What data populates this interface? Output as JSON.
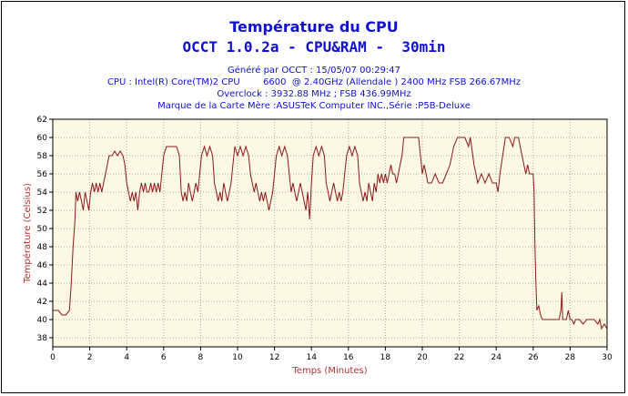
{
  "chart_data": {
    "type": "line",
    "title": "Température du CPU",
    "subtitle": "OCCT 1.0.2a - CPU&RAM -  30min",
    "info_lines": [
      "Généré par OCCT : 15/05/07 00:29:47",
      "CPU : Intel(R) Core(TM)2 CPU        6600  @ 2.40GHz (Allendale ) 2400 MHz FSB 266.67MHz",
      "Overclock : 3932.88 MHz ; FSB 436.99MHz",
      "Marque de la Carte Mère :ASUSTeK Computer INC.,Série :P5B-Deluxe"
    ],
    "xlabel": "Temps (Minutes)",
    "ylabel": "Température (Celsius)",
    "xlim": [
      0,
      30
    ],
    "ylim": [
      37,
      62
    ],
    "xticks": [
      0,
      2,
      4,
      6,
      8,
      10,
      12,
      14,
      16,
      18,
      20,
      22,
      24,
      26,
      28,
      30
    ],
    "yticks": [
      38,
      40,
      42,
      44,
      46,
      48,
      50,
      52,
      54,
      56,
      58,
      60,
      62
    ],
    "grid": true,
    "colors": {
      "line": "#8b1a1a",
      "plot_bg": "#fdf8e4",
      "grid": "#aaaaaa",
      "title": "#1010d0",
      "axis_label": "#b03030"
    },
    "series": [
      {
        "values": [
          [
            0,
            41
          ],
          [
            0.3,
            41
          ],
          [
            0.5,
            40.5
          ],
          [
            0.7,
            40.5
          ],
          [
            0.9,
            41
          ],
          [
            1.0,
            44
          ],
          [
            1.1,
            48
          ],
          [
            1.2,
            51
          ],
          [
            1.25,
            54
          ],
          [
            1.35,
            53
          ],
          [
            1.45,
            54
          ],
          [
            1.55,
            53
          ],
          [
            1.65,
            52
          ],
          [
            1.75,
            54
          ],
          [
            1.85,
            53
          ],
          [
            1.95,
            52
          ],
          [
            2.05,
            54
          ],
          [
            2.15,
            55
          ],
          [
            2.25,
            54
          ],
          [
            2.35,
            55
          ],
          [
            2.45,
            54
          ],
          [
            2.55,
            55
          ],
          [
            2.65,
            54
          ],
          [
            2.75,
            55
          ],
          [
            2.85,
            56
          ],
          [
            2.95,
            57
          ],
          [
            3.05,
            58
          ],
          [
            3.2,
            58
          ],
          [
            3.35,
            58.5
          ],
          [
            3.5,
            58
          ],
          [
            3.65,
            58.5
          ],
          [
            3.8,
            58
          ],
          [
            3.9,
            57
          ],
          [
            4.0,
            55
          ],
          [
            4.1,
            54
          ],
          [
            4.2,
            53
          ],
          [
            4.3,
            54
          ],
          [
            4.4,
            53
          ],
          [
            4.5,
            54
          ],
          [
            4.6,
            52
          ],
          [
            4.7,
            54
          ],
          [
            4.8,
            55
          ],
          [
            4.9,
            54
          ],
          [
            5.0,
            55
          ],
          [
            5.1,
            54
          ],
          [
            5.2,
            54
          ],
          [
            5.3,
            55
          ],
          [
            5.4,
            54
          ],
          [
            5.5,
            55
          ],
          [
            5.6,
            54
          ],
          [
            5.7,
            55
          ],
          [
            5.8,
            54
          ],
          [
            5.9,
            56
          ],
          [
            6.0,
            58
          ],
          [
            6.15,
            59
          ],
          [
            6.3,
            59
          ],
          [
            6.5,
            59
          ],
          [
            6.7,
            59
          ],
          [
            6.85,
            58
          ],
          [
            6.95,
            54
          ],
          [
            7.05,
            53
          ],
          [
            7.15,
            54
          ],
          [
            7.25,
            53
          ],
          [
            7.35,
            55
          ],
          [
            7.45,
            54
          ],
          [
            7.55,
            53
          ],
          [
            7.65,
            54
          ],
          [
            7.75,
            55
          ],
          [
            7.85,
            54
          ],
          [
            7.95,
            56
          ],
          [
            8.05,
            58
          ],
          [
            8.2,
            59
          ],
          [
            8.35,
            58
          ],
          [
            8.5,
            59
          ],
          [
            8.65,
            58
          ],
          [
            8.75,
            55
          ],
          [
            8.85,
            54
          ],
          [
            8.95,
            53
          ],
          [
            9.05,
            54
          ],
          [
            9.15,
            53
          ],
          [
            9.25,
            55
          ],
          [
            9.35,
            54
          ],
          [
            9.45,
            53
          ],
          [
            9.55,
            54
          ],
          [
            9.65,
            55
          ],
          [
            9.75,
            57
          ],
          [
            9.85,
            59
          ],
          [
            10.0,
            58
          ],
          [
            10.15,
            59
          ],
          [
            10.3,
            58
          ],
          [
            10.45,
            59
          ],
          [
            10.6,
            58
          ],
          [
            10.7,
            56
          ],
          [
            10.8,
            55
          ],
          [
            10.9,
            54
          ],
          [
            11.0,
            55
          ],
          [
            11.1,
            54
          ],
          [
            11.2,
            53
          ],
          [
            11.3,
            54
          ],
          [
            11.4,
            53
          ],
          [
            11.5,
            54
          ],
          [
            11.6,
            53
          ],
          [
            11.7,
            52
          ],
          [
            11.8,
            53
          ],
          [
            11.9,
            54
          ],
          [
            12.0,
            56
          ],
          [
            12.1,
            58
          ],
          [
            12.25,
            59
          ],
          [
            12.4,
            58
          ],
          [
            12.55,
            59
          ],
          [
            12.7,
            58
          ],
          [
            12.8,
            56
          ],
          [
            12.9,
            54
          ],
          [
            13.0,
            55
          ],
          [
            13.1,
            54
          ],
          [
            13.2,
            53
          ],
          [
            13.3,
            54
          ],
          [
            13.4,
            55
          ],
          [
            13.5,
            54
          ],
          [
            13.6,
            53
          ],
          [
            13.7,
            52
          ],
          [
            13.8,
            54
          ],
          [
            13.9,
            51
          ],
          [
            14.0,
            55
          ],
          [
            14.1,
            58
          ],
          [
            14.25,
            59
          ],
          [
            14.4,
            58
          ],
          [
            14.55,
            59
          ],
          [
            14.7,
            58
          ],
          [
            14.8,
            55
          ],
          [
            14.9,
            54
          ],
          [
            15.0,
            53
          ],
          [
            15.1,
            54
          ],
          [
            15.2,
            55
          ],
          [
            15.3,
            54
          ],
          [
            15.4,
            53
          ],
          [
            15.5,
            54
          ],
          [
            15.6,
            53
          ],
          [
            15.7,
            54
          ],
          [
            15.8,
            56
          ],
          [
            15.9,
            58
          ],
          [
            16.05,
            59
          ],
          [
            16.2,
            58
          ],
          [
            16.35,
            59
          ],
          [
            16.5,
            58
          ],
          [
            16.6,
            55
          ],
          [
            16.7,
            54
          ],
          [
            16.8,
            53
          ],
          [
            16.9,
            54
          ],
          [
            17.0,
            53
          ],
          [
            17.1,
            55
          ],
          [
            17.2,
            54
          ],
          [
            17.3,
            53
          ],
          [
            17.4,
            55
          ],
          [
            17.5,
            54
          ],
          [
            17.6,
            56
          ],
          [
            17.7,
            55
          ],
          [
            17.8,
            56
          ],
          [
            17.9,
            55
          ],
          [
            18.0,
            56
          ],
          [
            18.1,
            55
          ],
          [
            18.2,
            56
          ],
          [
            18.3,
            57
          ],
          [
            18.4,
            56
          ],
          [
            18.5,
            56
          ],
          [
            18.6,
            55
          ],
          [
            18.7,
            56
          ],
          [
            18.8,
            57
          ],
          [
            18.9,
            58
          ],
          [
            19.0,
            60
          ],
          [
            19.2,
            60
          ],
          [
            19.4,
            60
          ],
          [
            19.6,
            60
          ],
          [
            19.8,
            60
          ],
          [
            19.9,
            58
          ],
          [
            20.0,
            56
          ],
          [
            20.1,
            57
          ],
          [
            20.2,
            56
          ],
          [
            20.3,
            55
          ],
          [
            20.5,
            55
          ],
          [
            20.7,
            56
          ],
          [
            20.9,
            55
          ],
          [
            21.1,
            55
          ],
          [
            21.3,
            56
          ],
          [
            21.5,
            57
          ],
          [
            21.7,
            59
          ],
          [
            21.9,
            60
          ],
          [
            22.1,
            60
          ],
          [
            22.3,
            60
          ],
          [
            22.5,
            59
          ],
          [
            22.6,
            60
          ],
          [
            22.8,
            57
          ],
          [
            22.9,
            56
          ],
          [
            23.0,
            55
          ],
          [
            23.2,
            56
          ],
          [
            23.4,
            55
          ],
          [
            23.6,
            56
          ],
          [
            23.8,
            55
          ],
          [
            24.0,
            55
          ],
          [
            24.1,
            54
          ],
          [
            24.2,
            56
          ],
          [
            24.35,
            58
          ],
          [
            24.5,
            60
          ],
          [
            24.7,
            60
          ],
          [
            24.9,
            59
          ],
          [
            25.0,
            60
          ],
          [
            25.2,
            60
          ],
          [
            25.4,
            58
          ],
          [
            25.5,
            57
          ],
          [
            25.6,
            56
          ],
          [
            25.7,
            57
          ],
          [
            25.8,
            56
          ],
          [
            25.9,
            56
          ],
          [
            26.0,
            56
          ],
          [
            26.05,
            54
          ],
          [
            26.1,
            48
          ],
          [
            26.15,
            44
          ],
          [
            26.2,
            41
          ],
          [
            26.3,
            41.5
          ],
          [
            26.4,
            40.5
          ],
          [
            26.5,
            40
          ],
          [
            26.8,
            40
          ],
          [
            27.1,
            40
          ],
          [
            27.4,
            40
          ],
          [
            27.5,
            41
          ],
          [
            27.55,
            43
          ],
          [
            27.6,
            40
          ],
          [
            27.7,
            40
          ],
          [
            27.8,
            40
          ],
          [
            27.9,
            41
          ],
          [
            28.0,
            40
          ],
          [
            28.1,
            40
          ],
          [
            28.2,
            39.5
          ],
          [
            28.3,
            40
          ],
          [
            28.5,
            40
          ],
          [
            28.7,
            39.5
          ],
          [
            28.9,
            40
          ],
          [
            29.1,
            40
          ],
          [
            29.3,
            40
          ],
          [
            29.5,
            39.5
          ],
          [
            29.6,
            40
          ],
          [
            29.7,
            39
          ],
          [
            29.85,
            39.5
          ],
          [
            30.0,
            39
          ]
        ]
      }
    ]
  }
}
